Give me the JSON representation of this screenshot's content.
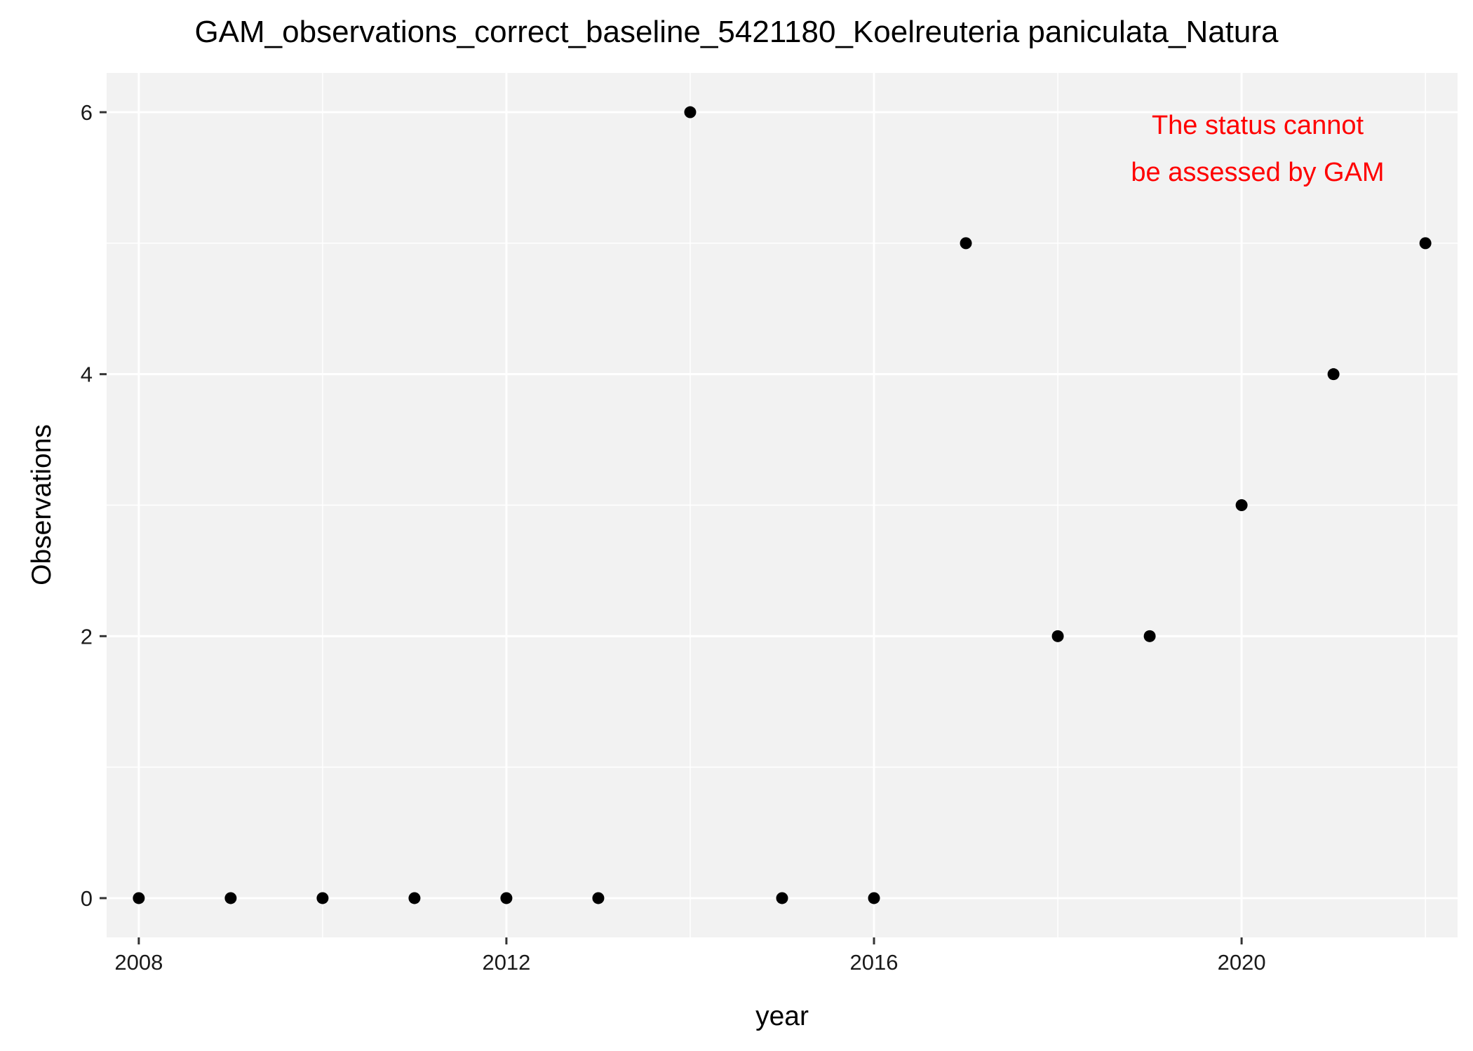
{
  "chart_data": {
    "type": "scatter",
    "title": "GAM_observations_correct_baseline_5421180_Koelreuteria paniculata_Natura",
    "xlabel": "year",
    "ylabel": "Observations",
    "xlim": [
      2007.65,
      2022.35
    ],
    "ylim": [
      -0.3,
      6.3
    ],
    "x_ticks": [
      2008,
      2012,
      2016,
      2020
    ],
    "x_tick_labels": [
      "2008",
      "2012",
      "2016",
      "2020"
    ],
    "y_ticks": [
      0,
      2,
      4,
      6
    ],
    "y_tick_labels": [
      "0",
      "2",
      "4",
      "6"
    ],
    "x_minor_gridlines": [
      2010,
      2014,
      2018,
      2022
    ],
    "y_minor_gridlines": [
      1,
      3,
      5
    ],
    "grid": true,
    "legend": "none",
    "panel_background": "#f2f2f2",
    "grid_color": "#ffffff",
    "point_color": "#000000",
    "series": [
      {
        "x": [
          2008,
          2009,
          2010,
          2011,
          2012,
          2013,
          2014,
          2015,
          2016,
          2017,
          2018,
          2019,
          2020,
          2021,
          2022
        ],
        "y": [
          0,
          0,
          0,
          0,
          0,
          0,
          6,
          0,
          0,
          5,
          2,
          2,
          3,
          4,
          5
        ]
      }
    ],
    "annotation": {
      "lines": [
        "The status cannot",
        "be assessed by GAM"
      ],
      "color": "#ff0000"
    }
  }
}
